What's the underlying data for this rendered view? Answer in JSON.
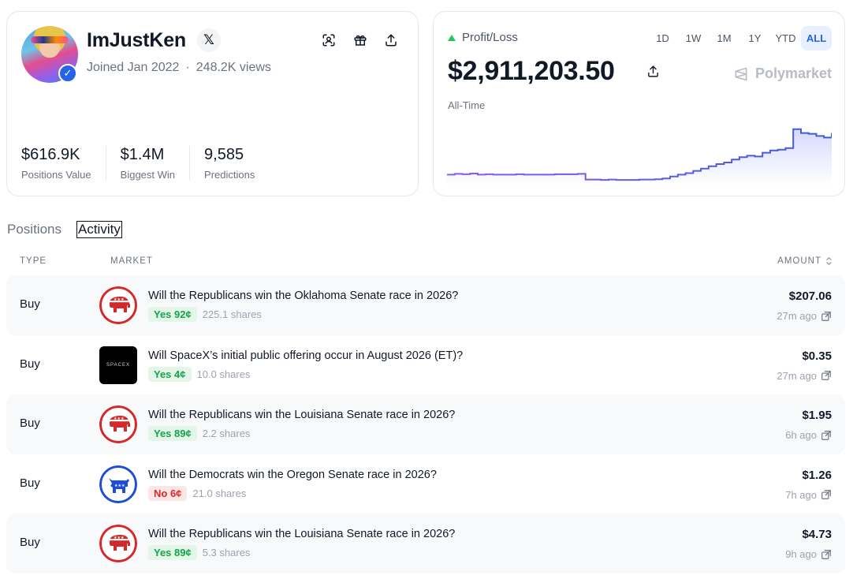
{
  "profile": {
    "username": "ImJustKen",
    "joined": "Joined Jan 2022",
    "separator": "·",
    "views": "248.2K views",
    "stats": [
      {
        "value": "$616.9K",
        "label": "Positions Value"
      },
      {
        "value": "$1.4M",
        "label": "Biggest Win"
      },
      {
        "value": "9,585",
        "label": "Predictions"
      }
    ]
  },
  "pnl": {
    "label": "Profit/Loss",
    "value": "$2,911,203.50",
    "period": "All-Time",
    "brand": "Polymarket",
    "ranges": [
      "1D",
      "1W",
      "1M",
      "1Y",
      "YTD",
      "ALL"
    ],
    "active_range": "ALL",
    "colors": {
      "line_start": "#8b5cf6",
      "line_end": "#3b5bdb",
      "trend_up": "#22c55e"
    }
  },
  "chart_data": {
    "type": "area",
    "x": [
      0,
      1,
      2,
      3,
      4,
      5,
      6,
      7,
      8,
      9,
      10,
      11,
      12,
      13,
      14,
      15,
      16,
      17,
      18,
      19,
      20,
      21,
      22,
      23,
      24,
      25,
      26,
      27,
      28,
      29,
      30,
      31,
      32,
      33,
      34,
      35,
      36,
      37,
      38,
      39,
      40,
      41,
      42,
      43,
      44,
      45,
      46,
      47,
      48,
      49,
      50
    ],
    "values": [
      0.2,
      0.22,
      0.21,
      0.23,
      0.2,
      0.21,
      0.2,
      0.2,
      0.2,
      0.21,
      0.2,
      0.2,
      0.2,
      0.2,
      0.21,
      0.21,
      0.21,
      0.22,
      0.07,
      0.07,
      0.06,
      0.07,
      0.06,
      0.06,
      0.06,
      0.07,
      0.07,
      0.08,
      0.1,
      0.15,
      0.2,
      0.24,
      0.3,
      0.36,
      0.42,
      0.48,
      0.52,
      0.6,
      0.66,
      0.7,
      0.68,
      0.78,
      0.84,
      0.86,
      0.9,
      1.4,
      1.3,
      1.28,
      1.22,
      1.18,
      1.3
    ],
    "ylim": [
      0,
      1.5
    ],
    "grid": false,
    "legend": "none"
  },
  "tabs": [
    {
      "label": "Positions"
    },
    {
      "label": "Activity"
    }
  ],
  "table": {
    "headers": {
      "type": "TYPE",
      "market": "MARKET",
      "amount": "AMOUNT"
    },
    "rows": [
      {
        "type": "Buy",
        "logo": "republican-elephant-icon",
        "title": "Will the Republicans win the Oklahoma Senate race in 2026?",
        "outcome": "Yes 92¢",
        "outcome_kind": "yes",
        "shares": "225.1 shares",
        "amount": "$207.06",
        "time": "27m ago"
      },
      {
        "type": "Buy",
        "logo": "spacex-logo",
        "title": "Will SpaceX’s initial public offering occur in August 2026 (ET)?",
        "outcome": "Yes 4¢",
        "outcome_kind": "yes",
        "shares": "10.0 shares",
        "amount": "$0.35",
        "time": "27m ago"
      },
      {
        "type": "Buy",
        "logo": "republican-elephant-icon",
        "title": "Will the Republicans win the Louisiana Senate race in 2026?",
        "outcome": "Yes 89¢",
        "outcome_kind": "yes",
        "shares": "2.2 shares",
        "amount": "$1.95",
        "time": "6h ago"
      },
      {
        "type": "Buy",
        "logo": "democrat-donkey-icon",
        "title": "Will the Democrats win the Oregon Senate race in 2026?",
        "outcome": "No 6¢",
        "outcome_kind": "no",
        "shares": "21.0 shares",
        "amount": "$1.26",
        "time": "7h ago"
      },
      {
        "type": "Buy",
        "logo": "republican-elephant-icon",
        "title": "Will the Republicans win the Louisiana Senate race in 2026?",
        "outcome": "Yes 89¢",
        "outcome_kind": "yes",
        "shares": "5.3 shares",
        "amount": "$4.73",
        "time": "9h ago"
      }
    ],
    "spacex_text": "SPACEX"
  }
}
